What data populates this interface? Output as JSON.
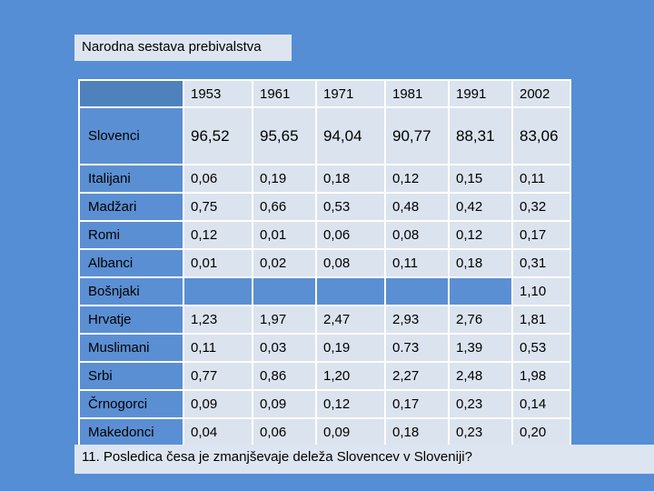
{
  "title": "Narodna sestava prebivalstva",
  "years": [
    "1953",
    "1961",
    "1971",
    "1981",
    "1991",
    "2002"
  ],
  "rows": [
    {
      "name": "Slovenci",
      "values": [
        "96,52",
        "95,65",
        "94,04",
        "90,77",
        "88,31",
        "83,06"
      ]
    },
    {
      "name": "Italijani",
      "values": [
        "0,06",
        "0,19",
        "0,18",
        "0,12",
        "0,15",
        "0,11"
      ]
    },
    {
      "name": "Madžari",
      "values": [
        "0,75",
        "0,66",
        "0,53",
        "0,48",
        "0,42",
        "0,32"
      ]
    },
    {
      "name": "Romi",
      "values": [
        "0,12",
        "0,01",
        "0,06",
        "0,08",
        "0,12",
        "0,17"
      ]
    },
    {
      "name": "Albanci",
      "values": [
        "0,01",
        "0,02",
        "0,08",
        "0,11",
        "0,18",
        "0,31"
      ]
    },
    {
      "name": "Bošnjaki",
      "values": [
        "",
        "",
        "",
        "",
        "",
        "1,10"
      ]
    },
    {
      "name": "Hrvatje",
      "values": [
        "1,23",
        "1,97",
        "2,47",
        "2,93",
        "2,76",
        "1,81"
      ]
    },
    {
      "name": "Muslimani",
      "values": [
        "0,11",
        "0,03",
        "0,19",
        "0.73",
        "1,39",
        "0,53"
      ]
    },
    {
      "name": "Srbi",
      "values": [
        "0,77",
        "0,86",
        "1,20",
        "2,27",
        "2,48",
        "1,98"
      ]
    },
    {
      "name": "Črnogorci",
      "values": [
        "0,09",
        "0,09",
        "0,12",
        "0,17",
        "0,23",
        "0,14"
      ]
    },
    {
      "name": "Makedonci",
      "values": [
        "0,04",
        "0,06",
        "0,09",
        "0,18",
        "0,23",
        "0,20"
      ]
    }
  ],
  "question": "11. Posledica česa je zmanjševaje deleža Slovencev v Sloveniji?"
}
